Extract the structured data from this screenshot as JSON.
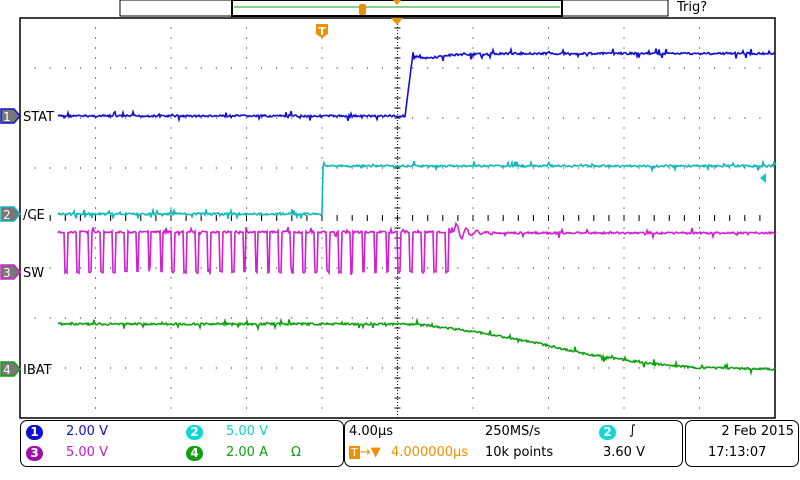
{
  "top": {
    "trigger_status": "Trig?"
  },
  "channels": [
    {
      "id": "1",
      "label": "STAT",
      "scale": "2.00 V",
      "scale_value": 2.0,
      "color": "#1010d0"
    },
    {
      "id": "2",
      "label": "/CE",
      "scale": "5.00 V",
      "scale_value": 5.0,
      "color": "#10b8b8"
    },
    {
      "id": "3",
      "label": "SW",
      "scale": "5.00 V",
      "scale_value": 5.0,
      "color": "#d020d0"
    },
    {
      "id": "4",
      "label": "IBAT",
      "scale": "2.00 A",
      "scale_value": 2.0,
      "color": "#10a010",
      "termination": "Ω"
    }
  ],
  "timebase": {
    "per_div": "4.00µs",
    "sample_rate": "250MS/s",
    "trigger_delay": "4.000000µs",
    "record_length": "10k points"
  },
  "trigger": {
    "source": "2",
    "slope_icon": "rising-edge",
    "level": "3.60 V"
  },
  "datetime": {
    "date": "2 Feb  2015",
    "time": "17:13:07"
  },
  "chart_data": {
    "type": "line",
    "xlabel": "",
    "ylabel": "",
    "x_unit": "µs (relative to trigger)",
    "xlim": [
      -16,
      24
    ],
    "grid": true,
    "series": [
      {
        "channel": "1",
        "points": [
          [
            -16,
            0
          ],
          [
            4.4,
            0
          ],
          [
            4.8,
            2.4
          ],
          [
            5.5,
            2.3
          ],
          [
            7,
            2.45
          ],
          [
            10,
            2.5
          ],
          [
            24,
            2.5
          ]
        ]
      },
      {
        "channel": "2",
        "points": [
          [
            -16,
            0
          ],
          [
            0,
            0
          ],
          [
            0.05,
            4.8
          ],
          [
            24,
            4.8
          ]
        ]
      },
      {
        "channel": "3",
        "switching_until_us": 7.0,
        "switching_period_us": 0.63,
        "high": 4.0,
        "low": 0,
        "settled": 3.9
      },
      {
        "channel": "4",
        "points": [
          [
            -16,
            1.8
          ],
          [
            4,
            1.8
          ],
          [
            5.5,
            1.75
          ],
          [
            8,
            1.5
          ],
          [
            11,
            1.1
          ],
          [
            14,
            0.6
          ],
          [
            17,
            0.25
          ],
          [
            20,
            0.05
          ],
          [
            24,
            0.0
          ]
        ]
      }
    ]
  }
}
